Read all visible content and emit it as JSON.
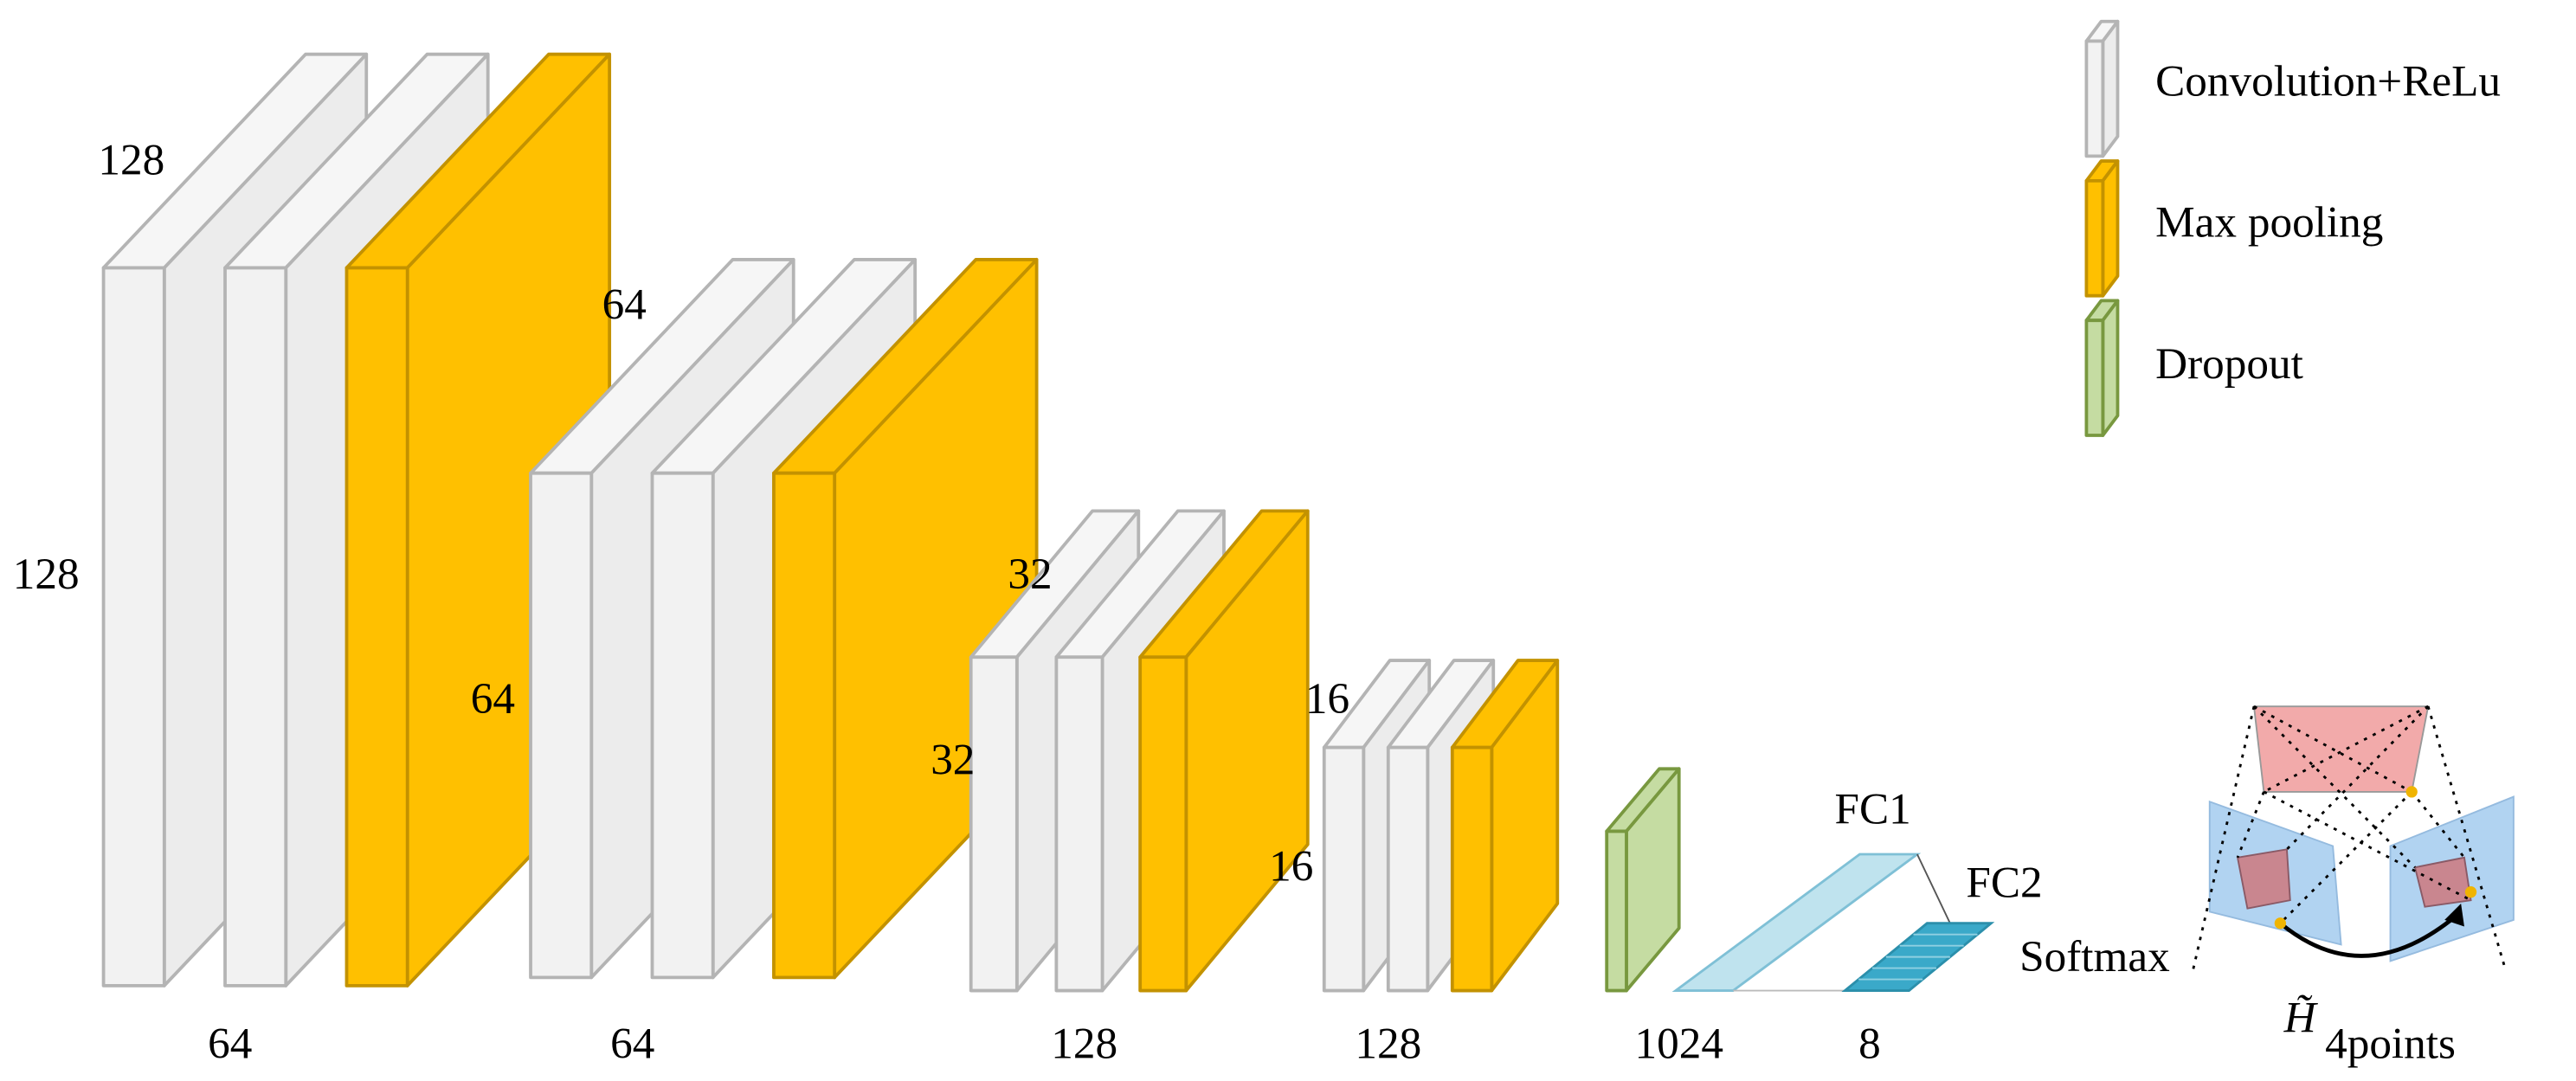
{
  "stages": [
    {
      "depth_label": "128",
      "height_label": "128",
      "width_label": "64"
    },
    {
      "depth_label": "64",
      "height_label": "64",
      "width_label": "64"
    },
    {
      "depth_label": "32",
      "height_label": "32",
      "width_label": "128"
    },
    {
      "depth_label": "16",
      "height_label": "16",
      "width_label": "128"
    }
  ],
  "fc": {
    "fc1_width_label": "1024",
    "fc2_width_label": "8",
    "fc1_label": "FC1",
    "fc2_label": "FC2",
    "softmax_label": "Softmax"
  },
  "legend": [
    "Convolution+ReLu",
    "Max pooling",
    "Dropout"
  ],
  "output": {
    "symbol": "H̃",
    "subscript": "4points"
  }
}
